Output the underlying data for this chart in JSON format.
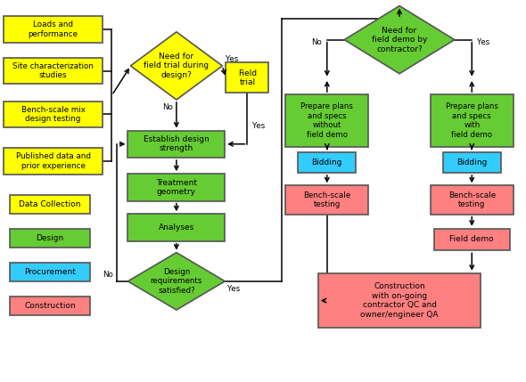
{
  "fig_width": 5.9,
  "fig_height": 4.29,
  "dpi": 100,
  "bg_color": "#ffffff",
  "colors": {
    "yellow": "#FFFF00",
    "green": "#66CC33",
    "blue": "#33CCFF",
    "red": "#FF8080",
    "border": "#555555"
  },
  "legend": [
    {
      "label": "Data Collection",
      "color": "#FFFF00"
    },
    {
      "label": "Design",
      "color": "#66CC33"
    },
    {
      "label": "Procurement",
      "color": "#33CCFF"
    },
    {
      "label": "Construction",
      "color": "#FF8080"
    }
  ],
  "xlim": [
    0,
    10
  ],
  "ylim": [
    0,
    7.3
  ]
}
